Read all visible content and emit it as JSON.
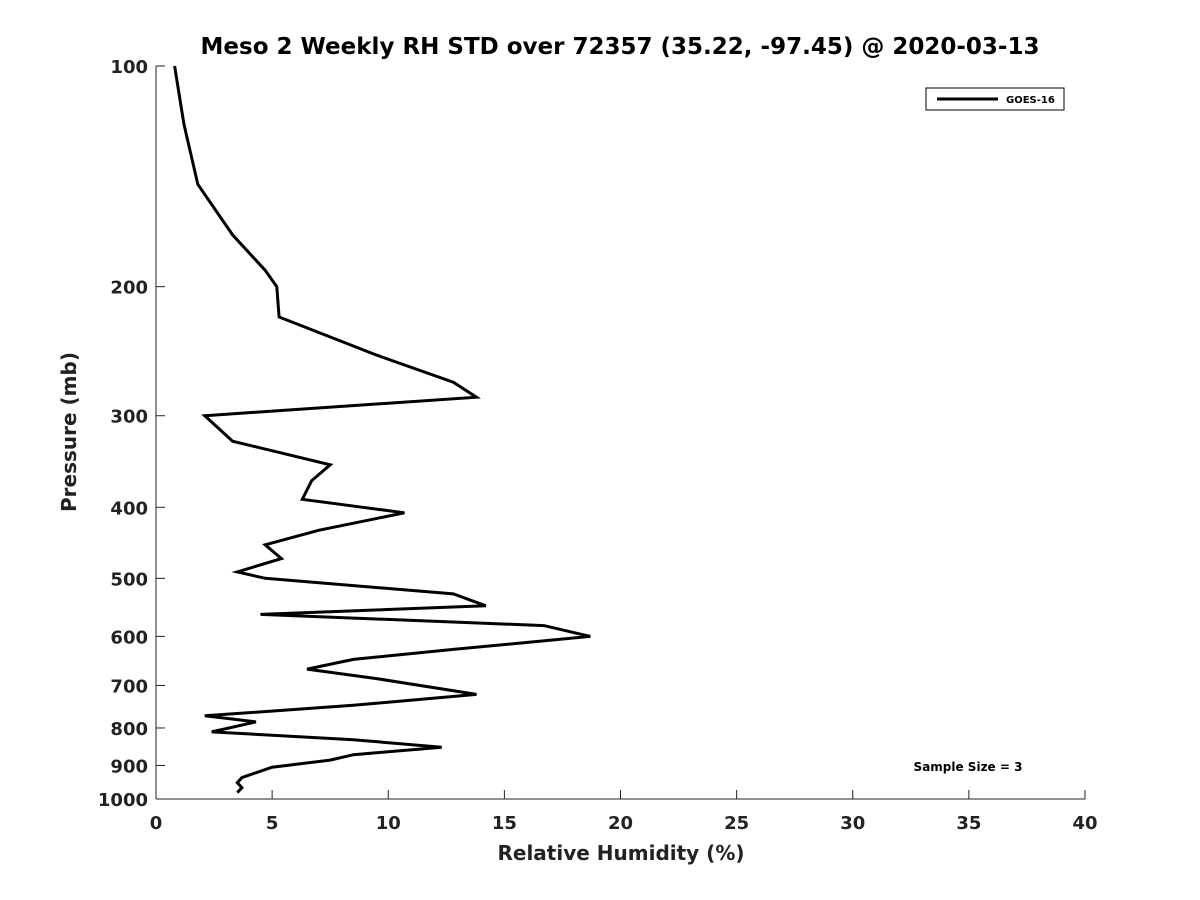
{
  "chart_data": {
    "type": "line",
    "title": "Meso 2 Weekly RH STD over 72357 (35.22, -97.45) @ 2020-03-13",
    "xlabel": "Relative Humidity (%)",
    "ylabel": "Pressure (mb)",
    "xlim": [
      0,
      40
    ],
    "ylim": [
      100,
      1000
    ],
    "yscale": "log",
    "yreversed": true,
    "xticks": [
      0,
      5,
      10,
      15,
      20,
      25,
      30,
      35,
      40
    ],
    "yticks": [
      100,
      200,
      300,
      400,
      500,
      600,
      700,
      800,
      900,
      1000
    ],
    "grid": false,
    "legend_position": "top-right",
    "annotation": "Sample Size = 3",
    "series": [
      {
        "name": "GOES-16",
        "color": "#000000",
        "x": [
          0.8,
          1.2,
          1.8,
          3.3,
          4.7,
          5.2,
          5.3,
          9.5,
          12.8,
          13.8,
          2.1,
          3.3,
          7.5,
          6.7,
          6.3,
          10.7,
          7.0,
          4.7,
          5.4,
          3.5,
          4.7,
          12.8,
          14.2,
          4.5,
          16.7,
          18.7,
          12.8,
          8.5,
          6.5,
          9.5,
          13.8,
          8.5,
          2.1,
          4.3,
          2.4,
          8.5,
          12.3,
          8.5,
          7.5,
          5.0,
          3.7,
          3.5,
          3.7,
          3.5
        ],
        "y": [
          100,
          120,
          145,
          170,
          190,
          200,
          220,
          248,
          270,
          283,
          300,
          325,
          350,
          368,
          390,
          407,
          430,
          450,
          470,
          490,
          500,
          525,
          545,
          560,
          580,
          600,
          625,
          645,
          665,
          685,
          720,
          745,
          770,
          785,
          810,
          830,
          850,
          870,
          885,
          905,
          935,
          950,
          965,
          980
        ]
      }
    ]
  }
}
